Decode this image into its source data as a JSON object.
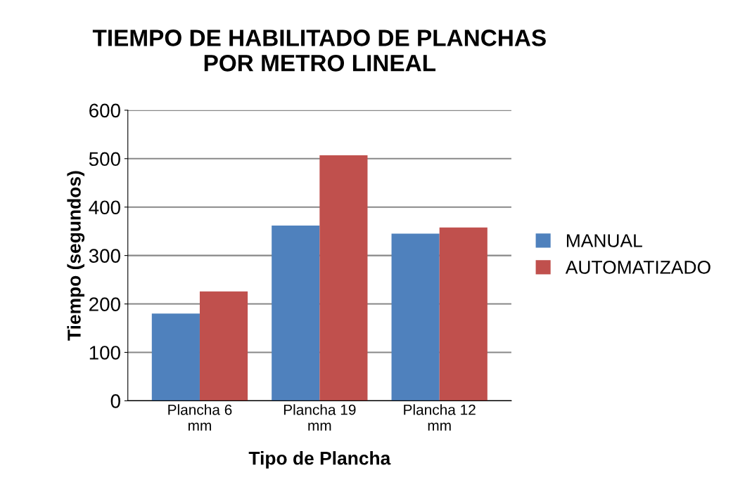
{
  "chart_data": {
    "type": "bar",
    "title": "TIEMPO DE HABILITADO DE PLANCHAS\nPOR METRO LINEAL",
    "xlabel": "Tipo de Plancha",
    "ylabel": "Tiempo (segundos)",
    "categories": [
      "Plancha 6\nmm",
      "Plancha 19\nmm",
      "Plancha 12\nmm"
    ],
    "series": [
      {
        "name": "MANUAL",
        "color": "#4f81bd",
        "values": [
          180,
          362,
          345
        ]
      },
      {
        "name": "AUTOMATIZADO",
        "color": "#c0504d",
        "values": [
          226,
          507,
          358
        ]
      }
    ],
    "ylim": [
      0,
      600
    ],
    "yticks": [
      0,
      100,
      200,
      300,
      400,
      500,
      600
    ],
    "grid": "y",
    "legend": "right"
  }
}
